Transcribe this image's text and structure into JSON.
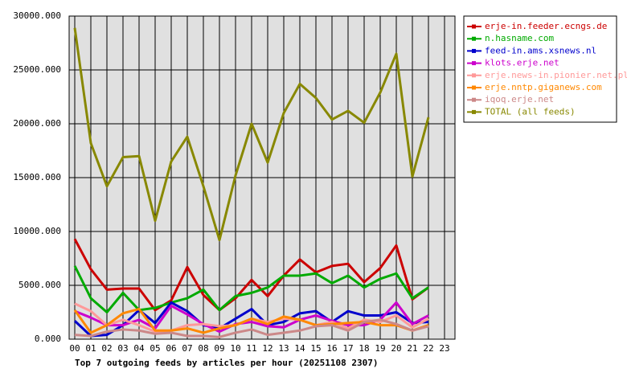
{
  "chart_data": {
    "type": "line",
    "title": "Top 7 outgoing feeds by articles per hour (20251108 2307)",
    "categories": [
      "00",
      "01",
      "02",
      "03",
      "04",
      "05",
      "06",
      "07",
      "08",
      "09",
      "10",
      "11",
      "12",
      "13",
      "14",
      "15",
      "16",
      "17",
      "18",
      "19",
      "20",
      "21",
      "22",
      "23"
    ],
    "ylim": [
      0,
      30000
    ],
    "yticks": [
      {
        "value": 0,
        "label": "0.000"
      },
      {
        "value": 5000,
        "label": "5000.000"
      },
      {
        "value": 10000,
        "label": "10000.000"
      },
      {
        "value": 15000,
        "label": "15000.000"
      },
      {
        "value": 20000,
        "label": "20000.000"
      },
      {
        "value": 25000,
        "label": "25000.000"
      },
      {
        "value": 30000,
        "label": "30000.000"
      }
    ],
    "grid": true,
    "legend": "right",
    "series": [
      {
        "name": "erje-in.feeder.ecngs.de",
        "color": "#cc0000",
        "values": [
          9300,
          6500,
          4600,
          4700,
          4700,
          2700,
          3600,
          6700,
          4100,
          2700,
          3800,
          5500,
          4000,
          5900,
          7400,
          6200,
          6800,
          7000,
          5300,
          6600,
          8700,
          3700,
          4800,
          null
        ]
      },
      {
        "name": "n.hasname.com",
        "color": "#00aa00",
        "values": [
          6800,
          3800,
          2500,
          4300,
          2700,
          2900,
          3400,
          3800,
          4600,
          2700,
          4000,
          4300,
          4800,
          5900,
          5900,
          6100,
          5200,
          5900,
          4800,
          5600,
          6100,
          3800,
          4800,
          null
        ]
      },
      {
        "name": "feed-in.ams.xsnews.nl",
        "color": "#0000cc",
        "values": [
          1700,
          300,
          400,
          1300,
          2700,
          1500,
          3400,
          2600,
          1300,
          1000,
          1900,
          2800,
          1300,
          1600,
          2400,
          2600,
          1600,
          2600,
          2200,
          2200,
          2500,
          1500,
          1600,
          null
        ]
      },
      {
        "name": "klots.erje.net",
        "color": "#cc00cc",
        "values": [
          2600,
          2000,
          1300,
          1300,
          1800,
          1000,
          3100,
          2300,
          1400,
          700,
          1400,
          1600,
          1200,
          1100,
          1800,
          2200,
          1700,
          1300,
          1300,
          1800,
          3400,
          1400,
          2200,
          null
        ]
      },
      {
        "name": "erje.news-in.pionier.net.pl",
        "color": "#ff9999",
        "values": [
          3300,
          2600,
          1300,
          1800,
          1300,
          700,
          800,
          1300,
          1400,
          1200,
          1300,
          1900,
          1600,
          1900,
          1800,
          1300,
          1600,
          1000,
          1800,
          1600,
          2200,
          1100,
          1900,
          null
        ]
      },
      {
        "name": "erje.nntp.giganews.com",
        "color": "#ff8800",
        "values": [
          2700,
          600,
          1300,
          2400,
          2800,
          800,
          800,
          1000,
          600,
          1000,
          1300,
          1900,
          1400,
          2100,
          1800,
          1300,
          1400,
          1500,
          1600,
          1300,
          1300,
          800,
          1300,
          null
        ]
      },
      {
        "name": "iqoq.erje.net",
        "color": "#cc8888",
        "values": [
          400,
          300,
          700,
          900,
          800,
          500,
          600,
          300,
          300,
          200,
          600,
          900,
          400,
          600,
          800,
          1200,
          1300,
          800,
          1600,
          1800,
          1400,
          800,
          1200,
          null
        ]
      },
      {
        "name": "TOTAL (all feeds)",
        "color": "#888800",
        "values": [
          28900,
          18200,
          14200,
          16900,
          17000,
          11000,
          16500,
          18800,
          14200,
          9200,
          15200,
          20000,
          16400,
          21000,
          23700,
          22400,
          20400,
          21200,
          20100,
          22900,
          26500,
          15100,
          20600,
          null
        ]
      }
    ]
  }
}
